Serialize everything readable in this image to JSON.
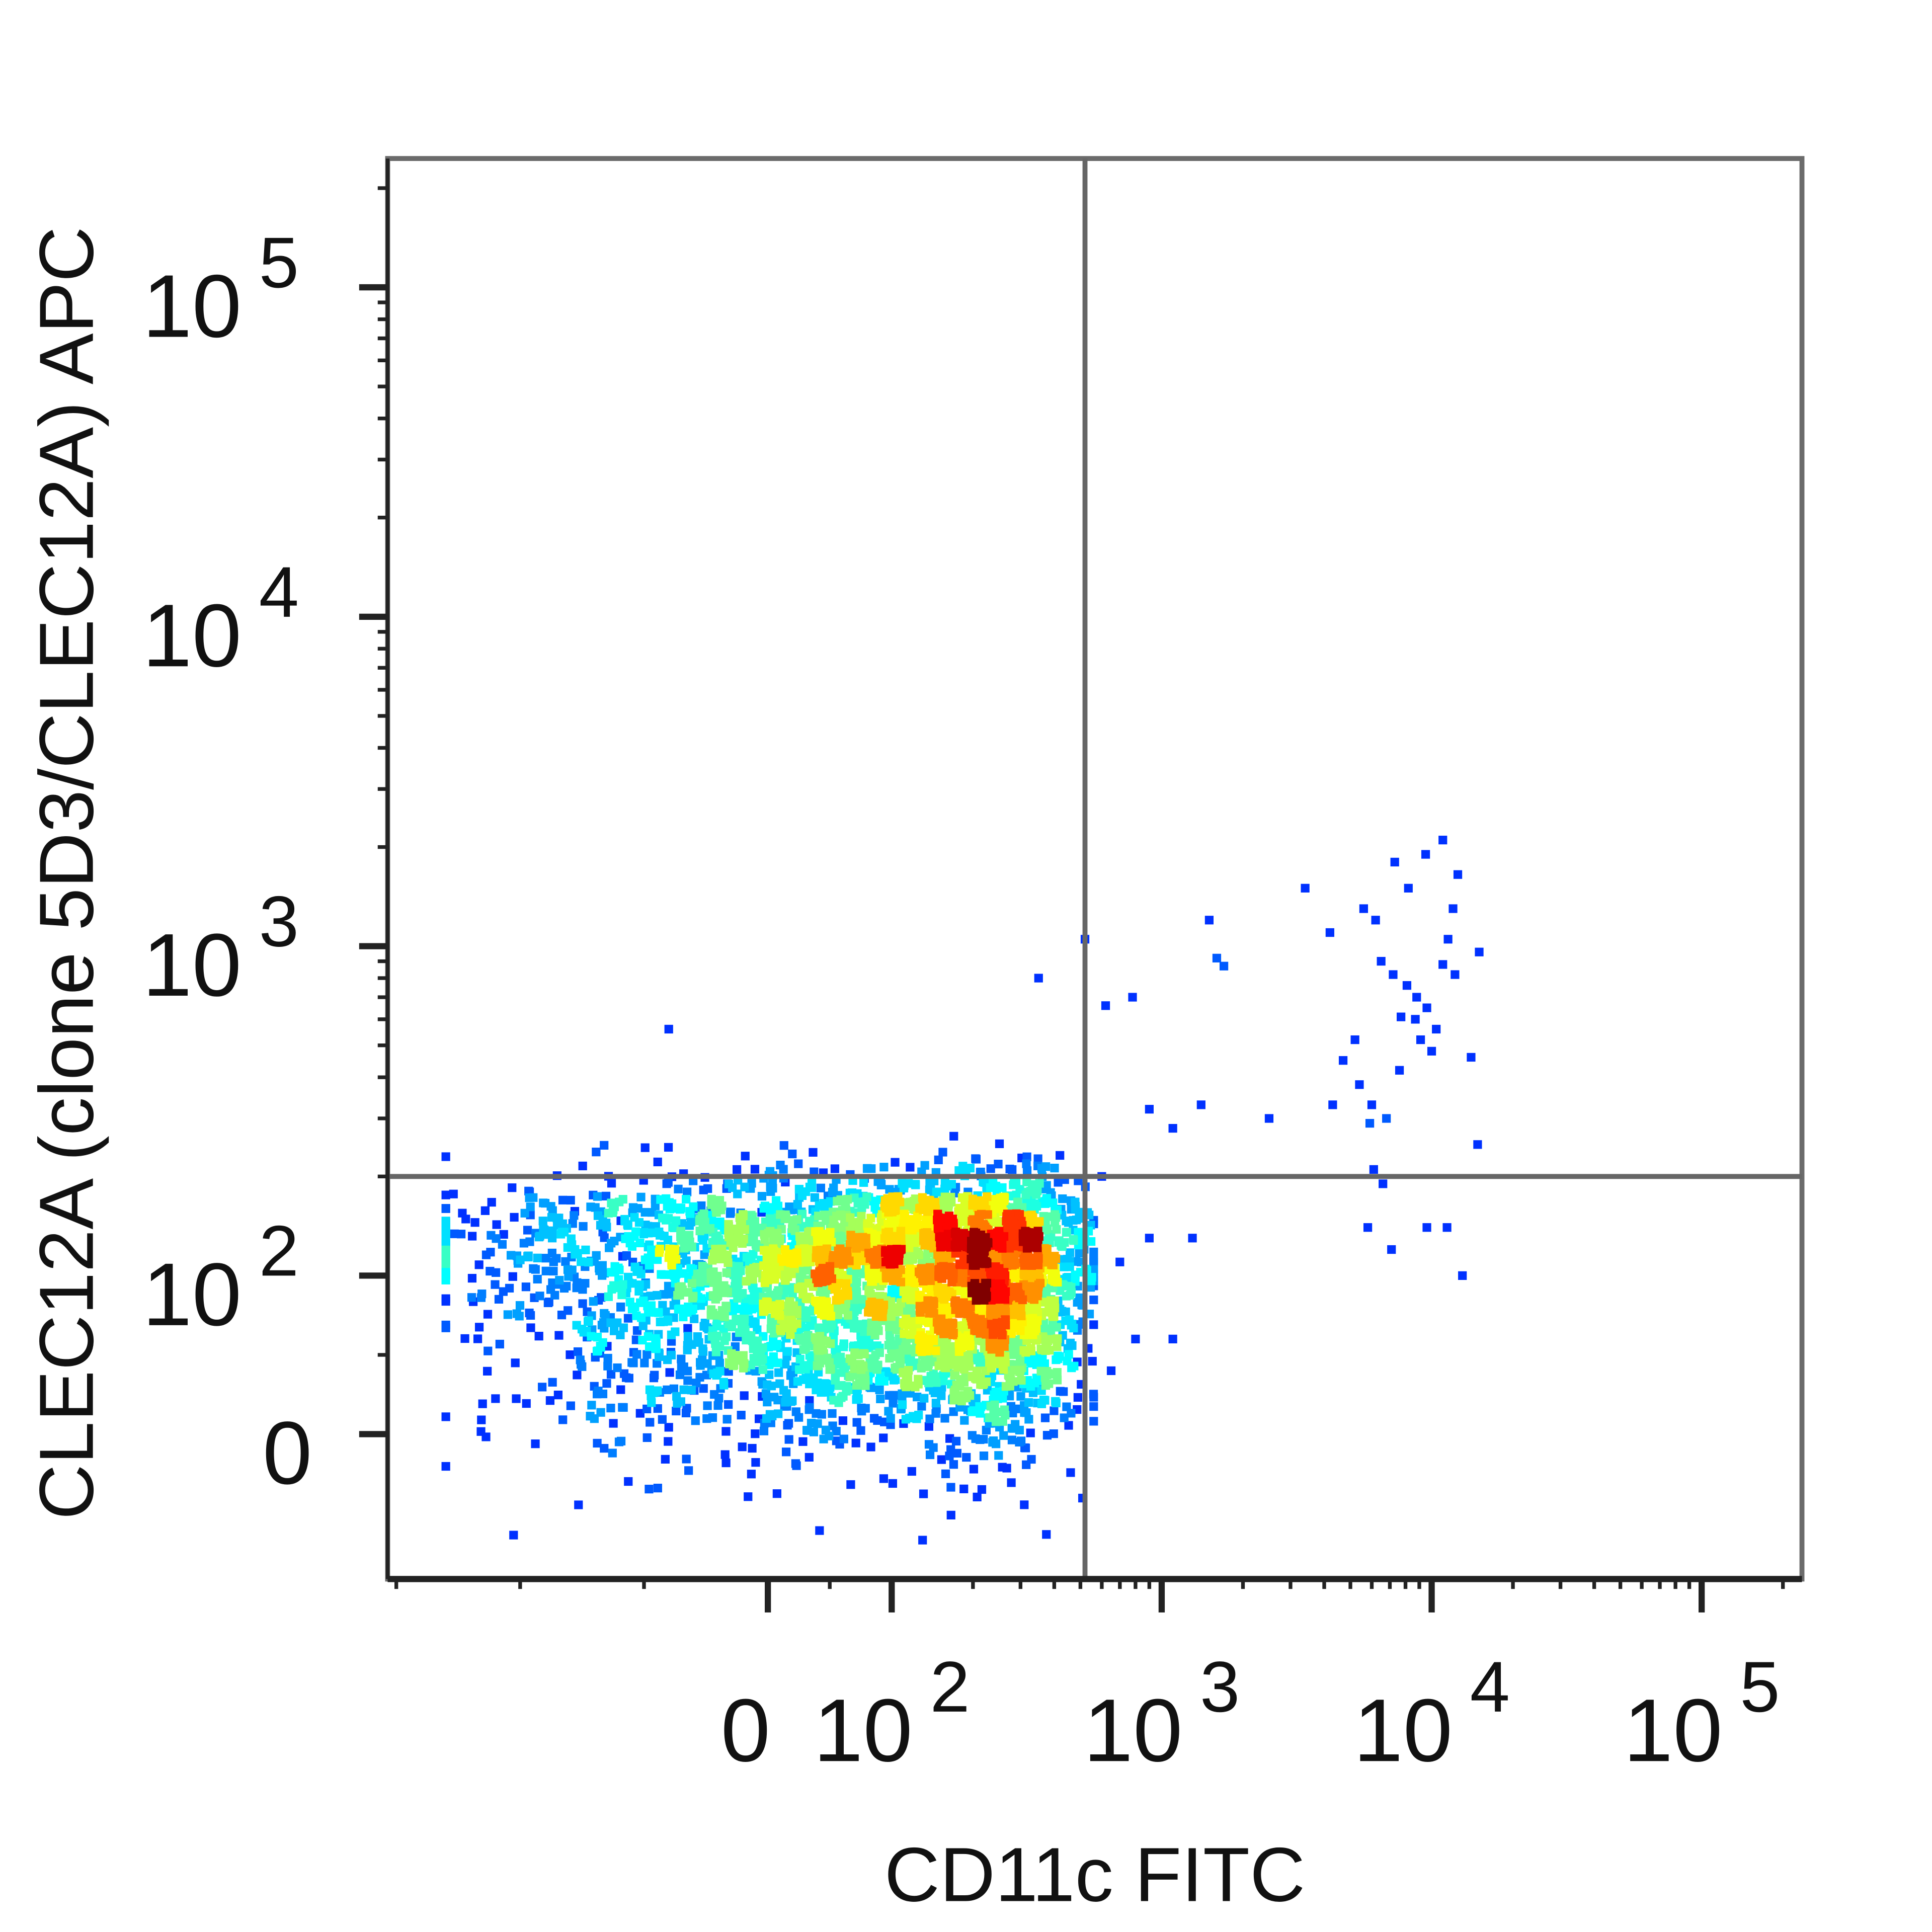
{
  "chart_data": {
    "type": "scatter",
    "style": "density-colored flow cytometry dot plot with quadrant gates",
    "xlabel": "CD11c FITC",
    "ylabel": "CLEC12A (clone 5D3/CLEC12A) APC",
    "x_scale": "biexponential",
    "y_scale": "biexponential",
    "xlim": [
      -300,
      200000
    ],
    "ylim": [
      -90,
      200000
    ],
    "x_ticks": [
      {
        "value": 0,
        "base": "0",
        "exp": ""
      },
      {
        "value": 100,
        "base": "10",
        "exp": "2"
      },
      {
        "value": 1000,
        "base": "10",
        "exp": "3"
      },
      {
        "value": 10000,
        "base": "10",
        "exp": "4"
      },
      {
        "value": 100000,
        "base": "10",
        "exp": "5"
      }
    ],
    "y_ticks": [
      {
        "value": 0,
        "base": "0",
        "exp": ""
      },
      {
        "value": 100,
        "base": "10",
        "exp": "2"
      },
      {
        "value": 1000,
        "base": "10",
        "exp": "3"
      },
      {
        "value": 10000,
        "base": "10",
        "exp": "4"
      },
      {
        "value": 100000,
        "base": "10",
        "exp": "5"
      }
    ],
    "quadrant_gate": {
      "x": 520,
      "y": 200
    },
    "main_population": {
      "x_mean": 110,
      "x_sd": 160,
      "y_mean": 95,
      "y_sd": 48,
      "count": 4200
    },
    "sparse_points": [
      [
        3400,
        1500
      ],
      [
        4200,
        1100
      ],
      [
        5600,
        1300
      ],
      [
        6200,
        1200
      ],
      [
        7300,
        1800
      ],
      [
        8200,
        1500
      ],
      [
        9500,
        1900
      ],
      [
        11000,
        2100
      ],
      [
        12500,
        1650
      ],
      [
        12000,
        1300
      ],
      [
        6500,
        900
      ],
      [
        7200,
        820
      ],
      [
        8100,
        760
      ],
      [
        8800,
        700
      ],
      [
        9600,
        650
      ],
      [
        10400,
        560
      ],
      [
        7700,
        610
      ],
      [
        8700,
        600
      ],
      [
        9100,
        520
      ],
      [
        10000,
        480
      ],
      [
        5200,
        520
      ],
      [
        4700,
        450
      ],
      [
        5400,
        380
      ],
      [
        6000,
        330
      ],
      [
        4300,
        330
      ],
      [
        5900,
        290
      ],
      [
        6800,
        300
      ],
      [
        7600,
        420
      ],
      [
        11000,
        880
      ],
      [
        12200,
        820
      ],
      [
        15000,
        960
      ],
      [
        14000,
        460
      ],
      [
        11500,
        1050
      ],
      [
        1500,
        1200
      ],
      [
        1600,
        920
      ],
      [
        1700,
        870
      ],
      [
        2500,
        300
      ],
      [
        1400,
        330
      ],
      [
        900,
        320
      ],
      [
        1100,
        280
      ],
      [
        6100,
        210
      ],
      [
        6600,
        190
      ],
      [
        5800,
        140
      ],
      [
        7100,
        120
      ],
      [
        9600,
        140
      ],
      [
        11400,
        140
      ],
      [
        13000,
        100
      ],
      [
        14800,
        250
      ],
      [
        520,
        1050
      ],
      [
        780,
        700
      ],
      [
        350,
        800
      ],
      [
        620,
        660
      ],
      [
        900,
        130
      ],
      [
        1300,
        130
      ],
      [
        1100,
        60
      ],
      [
        800,
        60
      ],
      [
        650,
        40
      ],
      [
        -80,
        560
      ],
      [
        600,
        200
      ],
      [
        700,
        110
      ]
    ]
  }
}
